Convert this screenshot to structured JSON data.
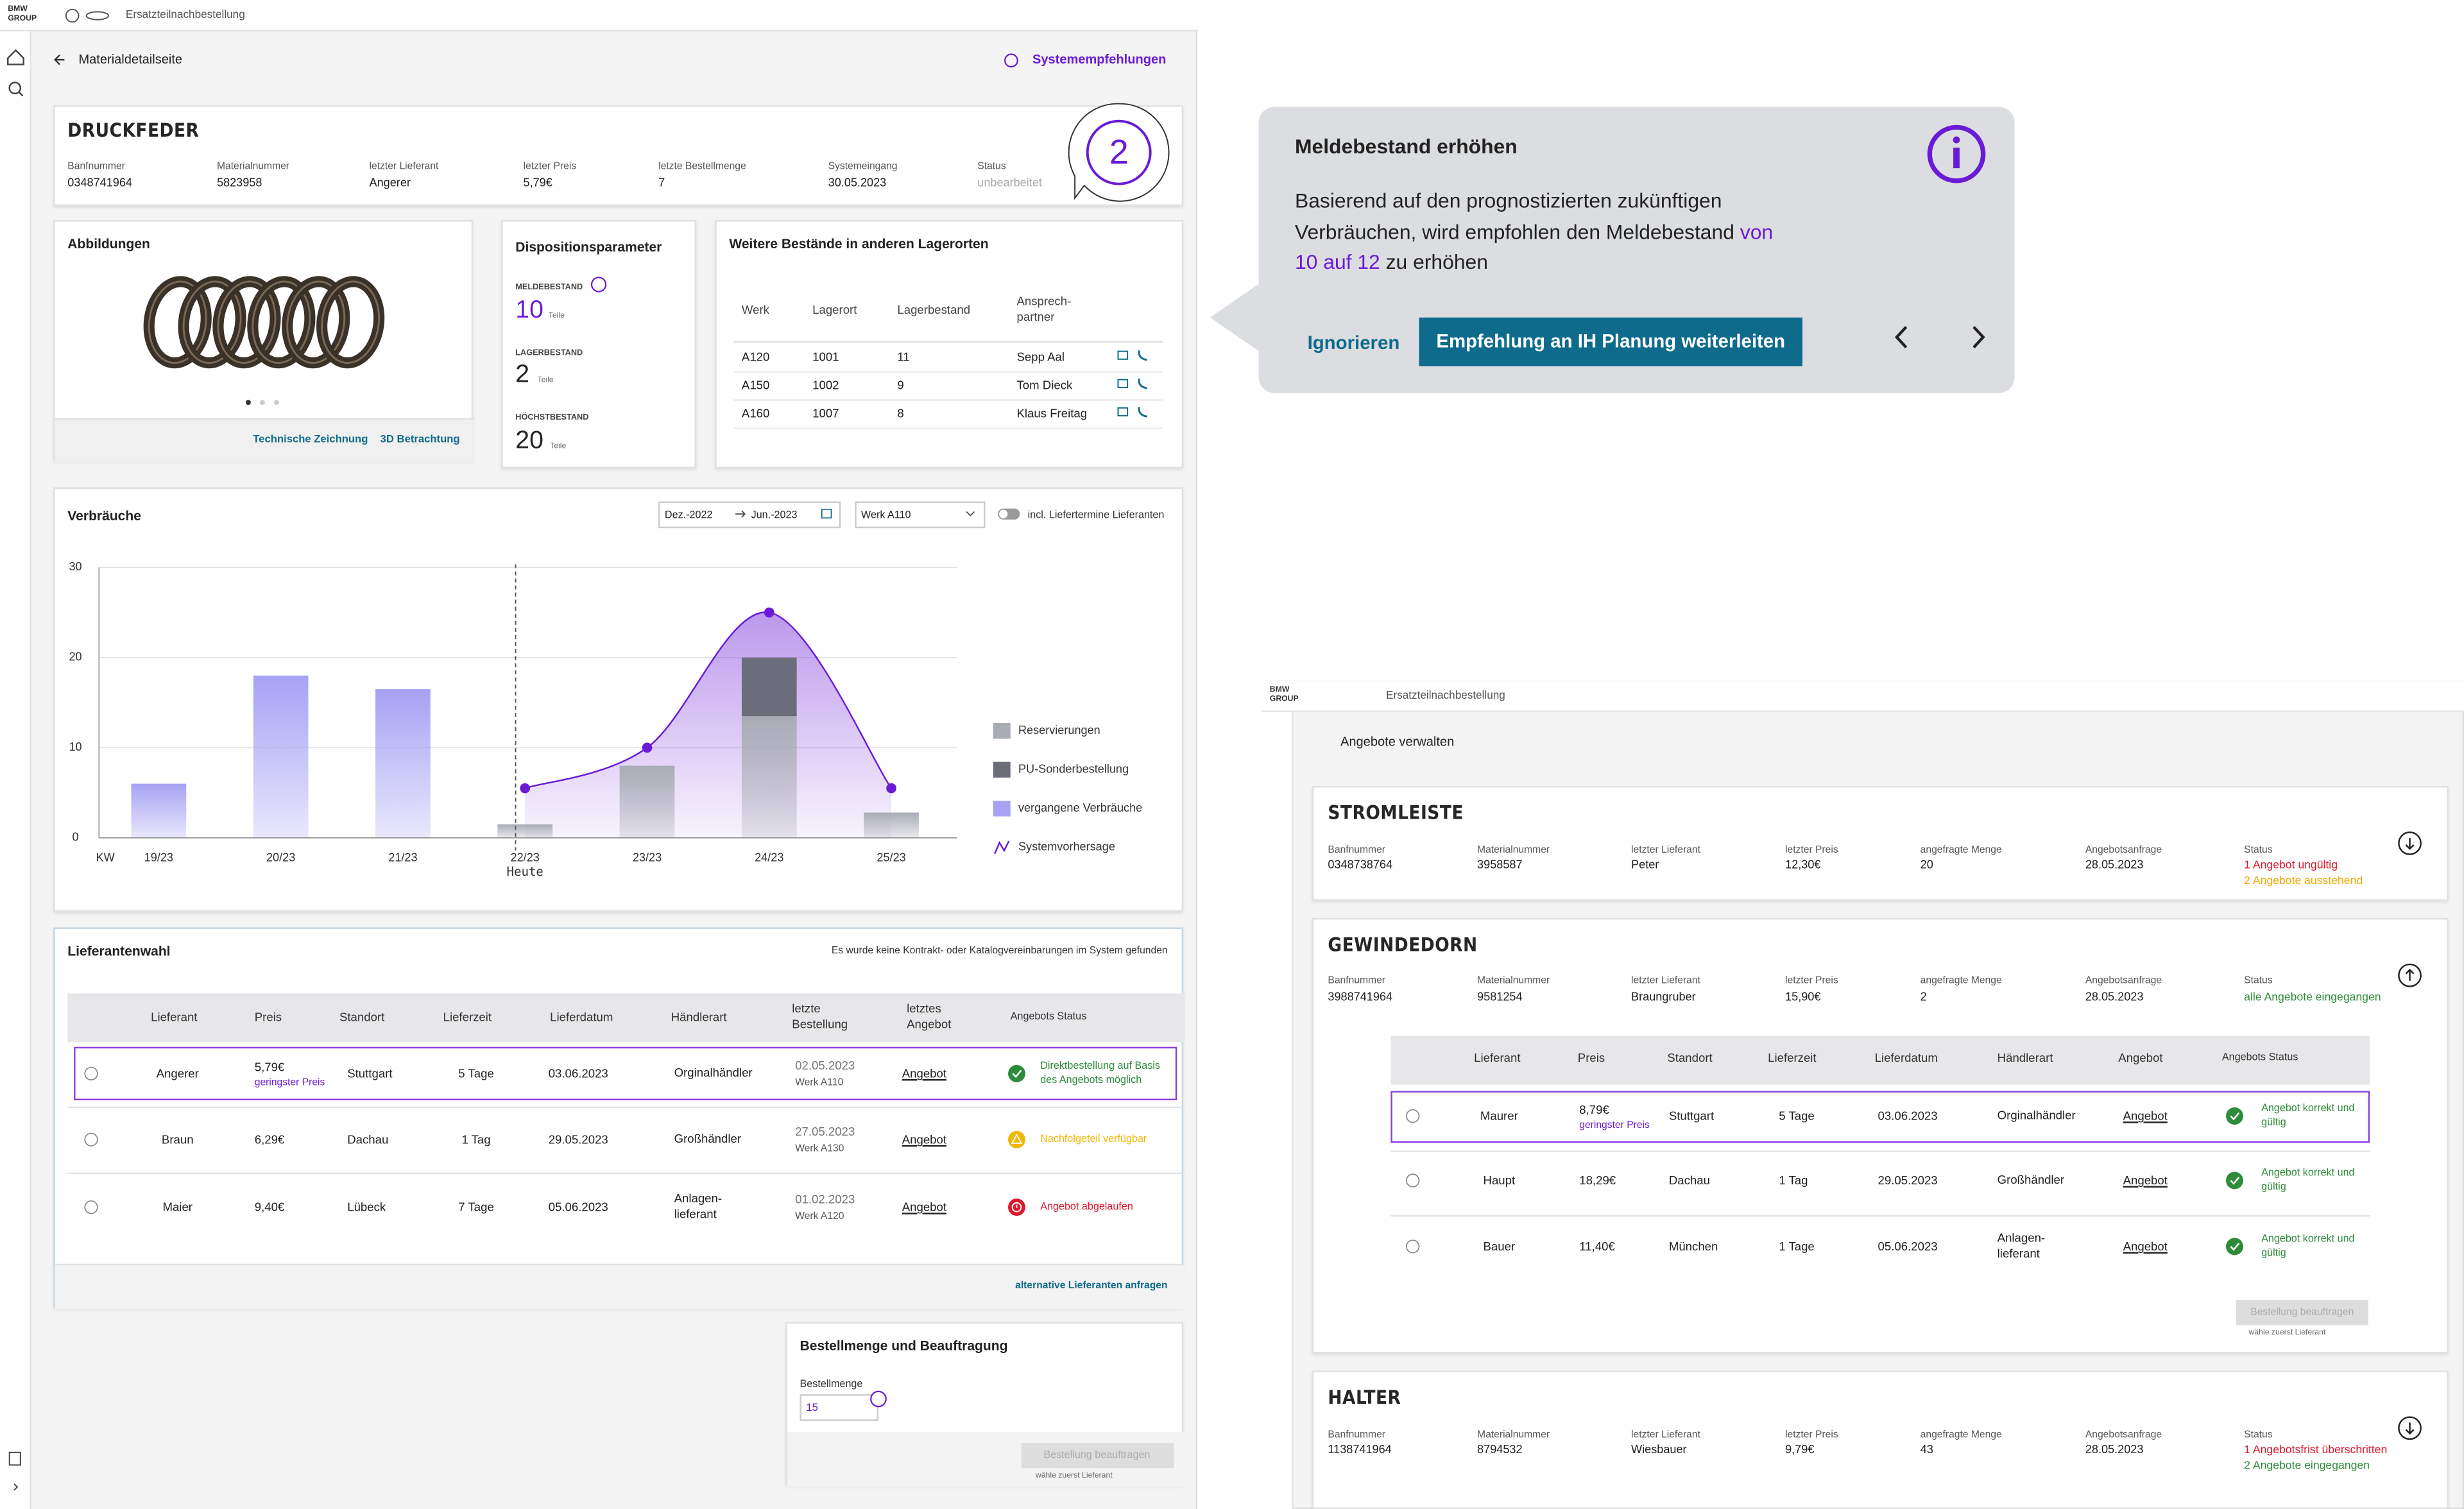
{
  "left": {
    "brand": "BMW GROUP",
    "app_title": "Ersatzteilnachbestellung",
    "page_title": "Materialdetailseite",
    "recommendations": "Systemempfehlungen",
    "material": {
      "name": "DRUCKFEDER",
      "badge": "2",
      "fields": [
        {
          "label": "Banfnummer",
          "value": "0348741964"
        },
        {
          "label": "Materialnummer",
          "value": "5823958"
        },
        {
          "label": "letzter Lieferant",
          "value": "Angerer"
        },
        {
          "label": "letzter Preis",
          "value": "5,79€"
        },
        {
          "label": "letzte Bestellmenge",
          "value": "7"
        },
        {
          "label": "Systemeingang",
          "value": "30.05.2023"
        },
        {
          "label": "Status",
          "value": "unbearbeitet"
        }
      ]
    },
    "images": {
      "title": "Abbildungen",
      "links": [
        "Technische Zeichnung",
        "3D Betrachtung"
      ]
    },
    "dispo": {
      "title": "Dispositionsparameter",
      "items": [
        {
          "label": "MELDEBESTAND",
          "value": "10",
          "unit": "Teile"
        },
        {
          "label": "LAGERBESTAND",
          "value": "2",
          "unit": "Teile"
        },
        {
          "label": "HÖCHSTBESTAND",
          "value": "20",
          "unit": "Teile"
        }
      ]
    },
    "stock": {
      "title": "Weitere Bestände in anderen Lagerorten",
      "headers": [
        "Werk",
        "Lagerort",
        "Lagerbestand",
        "Ansprech-partner"
      ],
      "rows": [
        [
          "A120",
          "1001",
          "11",
          "Sepp Aal"
        ],
        [
          "A150",
          "1002",
          "9",
          "Tom Dieck"
        ],
        [
          "A160",
          "1007",
          "8",
          "Klaus Freitag"
        ]
      ]
    },
    "usage": {
      "title": "Verbräuche",
      "date_from": "Dez.-2022",
      "date_to": "Jun.-2023",
      "plant": "Werk A110",
      "toggle": "incl. Liefertermine Lieferanten",
      "chart": {
        "type": "bar",
        "x_label": "KW",
        "annotation": "Heute",
        "categories": [
          "19/23",
          "20/23",
          "21/23",
          "22/23",
          "23/23",
          "24/23",
          "25/23"
        ],
        "ylim": [
          0,
          30
        ],
        "yticks": [
          0,
          10,
          20,
          30
        ],
        "grid": true,
        "stacked": true,
        "series": [
          {
            "name": "Reservierungen",
            "color": "#a9acb6",
            "values": [
              null,
              null,
              null,
              1.5,
              8,
              13.5,
              2.8
            ]
          },
          {
            "name": "PU-Sonderbestellung",
            "color": "#6b6e7a",
            "values": [
              null,
              null,
              null,
              null,
              null,
              6.5,
              null
            ]
          },
          {
            "name": "vergangene Verbräuche",
            "color": "#a6a2f4",
            "values": [
              6,
              18,
              16.5,
              null,
              null,
              null,
              null
            ]
          },
          {
            "name": "Systemvorhersage",
            "type": "line",
            "color": "#6a1bd6",
            "values": [
              null,
              null,
              null,
              5.5,
              10,
              25,
              5.5
            ]
          }
        ]
      }
    },
    "suppliers": {
      "title": "Lieferantenwahl",
      "note": "Es wurde keine Kontrakt- oder Katalogvereinbarungen im System gefunden",
      "headers": [
        "Lieferant",
        "Preis",
        "Standort",
        "Lieferzeit",
        "Lieferdatum",
        "Händlerart",
        "letzte Bestellung",
        "letztes Angebot",
        "Angebots Status"
      ],
      "rows": [
        {
          "supplier": "Angerer",
          "price": "5,79€",
          "price_note": "geringster Preis",
          "location": "Stuttgart",
          "lead_time": "5 Tage",
          "delivery": "03.06.2023",
          "dealer": "Orginalhändler",
          "last_order": "02.05.2023",
          "last_plant": "Werk A110",
          "offer": "Angebot",
          "status": "Direktbestellung auf Basis des Angebots möglich",
          "status_color": "#2e8b3a",
          "status_icon": "check",
          "selected": true
        },
        {
          "supplier": "Braun",
          "price": "6,29€",
          "location": "Dachau",
          "lead_time": "1 Tag",
          "delivery": "29.05.2023",
          "dealer": "Großhändler",
          "last_order": "27.05.2023",
          "last_plant": "Werk A130",
          "offer": "Angebot",
          "status": "Nachfolgeteil verfügbar",
          "status_color": "#f2b705",
          "status_icon": "warning",
          "selected": false
        },
        {
          "supplier": "Maier",
          "price": "9,40€",
          "location": "Lübeck",
          "lead_time": "7 Tage",
          "delivery": "05.06.2023",
          "dealer": "Anlagen-lieferant",
          "last_order": "01.02.2023",
          "last_plant": "Werk A120",
          "offer": "Angebot",
          "status": "Angebot abgelaufen",
          "status_color": "#e0182d",
          "status_icon": "alert",
          "selected": false
        }
      ],
      "link": "alternative Lieferanten anfragen"
    },
    "order": {
      "title": "Bestellmenge und Beauftragung",
      "label": "Bestellmenge",
      "quantity": "15",
      "button": "Bestellung beauftragen",
      "hint": "wähle zuerst Lieferant"
    }
  },
  "tooltip": {
    "title": "Meldebestand erhöhen",
    "text": "Basierend auf den prognostizierten zukünftigen Verbräuchen, wird empfohlen den Meldebestand",
    "highlight": "von 10 auf 12",
    "text_end": "zu erhöhen",
    "ignore": "Ignorieren",
    "forward": "Empfehlung an IH Planung weiterleiten"
  },
  "right": {
    "brand": "BMW GROUP",
    "app_title": "Ersatzteilnachbestellung",
    "page_title": "Angebote verwalten",
    "field_labels": [
      "Banfnummer",
      "Materialnummer",
      "letzter Lieferant",
      "letzter Preis",
      "angefragte Menge",
      "Angebotsanfrage",
      "Status"
    ],
    "materials": [
      {
        "name": "STROMLEISTE",
        "values": [
          "0348738764",
          "3958587",
          "Peter",
          "12,30€",
          "20",
          "28.05.2023"
        ],
        "status": [
          {
            "text": "1 Angebot ungültig",
            "color": "#e0182d"
          },
          {
            "text": "2 Angebote ausstehend",
            "color": "#f2a900"
          }
        ]
      },
      {
        "name": "GEWINDEDORN",
        "values": [
          "3988741964",
          "9581254",
          "Braungruber",
          "15,90€",
          "2",
          "28.05.2023"
        ],
        "status": [
          {
            "text": "alle Angebote eingegangen",
            "color": "#2e8b3a"
          }
        ]
      },
      {
        "name": "HALTER",
        "values": [
          "1138741964",
          "8794532",
          "Wiesbauer",
          "9,79€",
          "43",
          "28.05.2023"
        ],
        "status": [
          {
            "text": "1 Angebotsfrist überschritten",
            "color": "#e0182d"
          },
          {
            "text": "2 Angebote eingegangen",
            "color": "#2e8b3a"
          }
        ]
      }
    ],
    "offers": {
      "headers": [
        "Lieferant",
        "Preis",
        "Standort",
        "Lieferzeit",
        "Lieferdatum",
        "Händlerart",
        "Angebot",
        "Angebots Status"
      ],
      "rows": [
        {
          "supplier": "Maurer",
          "price": "8,79€",
          "price_note": "geringster Preis",
          "location": "Stuttgart",
          "lead_time": "5 Tage",
          "delivery": "03.06.2023",
          "dealer": "Orginalhändler",
          "offer": "Angebot",
          "status": "Angebot korrekt und gültig",
          "selected": true
        },
        {
          "supplier": "Haupt",
          "price": "18,29€",
          "location": "Dachau",
          "lead_time": "1 Tag",
          "delivery": "29.05.2023",
          "dealer": "Großhändler",
          "offer": "Angebot",
          "status": "Angebot korrekt und gültig",
          "selected": false
        },
        {
          "supplier": "Bauer",
          "price": "11,40€",
          "location": "München",
          "lead_time": "1 Tage",
          "delivery": "05.06.2023",
          "dealer": "Anlagen-lieferant",
          "offer": "Angebot",
          "status": "Angebot korrekt und gültig",
          "selected": false
        }
      ],
      "status_color": "#2e8b3a",
      "button": "Bestellung beauftragen",
      "hint": "wähle zuerst Lieferant"
    }
  }
}
